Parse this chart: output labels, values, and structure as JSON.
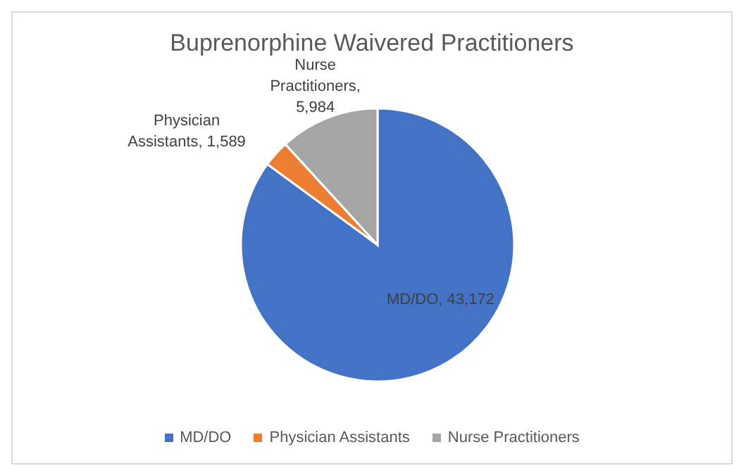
{
  "chart_data": {
    "type": "pie",
    "title": "Buprenorphine Waivered Practitioners",
    "categories": [
      "MD/DO",
      "Physician Assistants",
      "Nurse Practitioners"
    ],
    "values": [
      43172,
      1589,
      5984
    ],
    "value_labels": [
      "MD/DO, 43,172",
      "Physician Assistants, 1,589",
      "Nurse Practitioners, 5,984"
    ],
    "colors": [
      "#4472c4",
      "#ed7d31",
      "#a5a5a5"
    ],
    "legend": "bottom"
  }
}
